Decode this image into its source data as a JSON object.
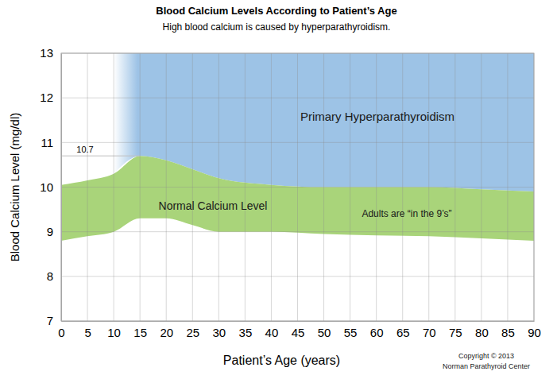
{
  "chart_data": {
    "type": "area",
    "title": "Blood Calcium Levels According to Patient’s Age",
    "subtitle": "High blood calcium is caused by hyperparathyroidism.",
    "x_label": "Patient’s Age (years)",
    "y_label": "Blood Calcium Level (mg/dl)",
    "xlim": [
      0,
      90
    ],
    "xticks": [
      0,
      5,
      10,
      15,
      20,
      25,
      30,
      35,
      40,
      45,
      50,
      55,
      60,
      65,
      70,
      75,
      80,
      85,
      90
    ],
    "ylim": [
      7,
      13
    ],
    "yticks": [
      7,
      8,
      9,
      10,
      11,
      12,
      13
    ],
    "grid": true,
    "series": [
      {
        "name": "Primary Hyperparathyroidism",
        "type": "range_area",
        "color": "#9dc3e6",
        "x": [
          10,
          15,
          20,
          25,
          30,
          40,
          50,
          60,
          70,
          80,
          90
        ],
        "low": [
          10.3,
          10.7,
          10.6,
          10.4,
          10.2,
          10.05,
          10.0,
          10.0,
          10.0,
          9.95,
          9.9
        ],
        "high": [
          13,
          13,
          13,
          13,
          13,
          13,
          13,
          13,
          13,
          13,
          13
        ]
      },
      {
        "name": "Normal Calcium Level",
        "type": "range_area",
        "color": "#a9d47a",
        "x": [
          0,
          5,
          10,
          15,
          20,
          25,
          30,
          40,
          50,
          60,
          70,
          80,
          90
        ],
        "low": [
          8.8,
          8.9,
          9.0,
          9.3,
          9.3,
          9.15,
          9.0,
          9.0,
          8.95,
          8.92,
          8.9,
          8.85,
          8.8
        ],
        "high": [
          10.05,
          10.15,
          10.3,
          10.7,
          10.6,
          10.4,
          10.2,
          10.05,
          10.0,
          10.0,
          10.0,
          9.95,
          9.9
        ]
      }
    ],
    "annotations": [
      {
        "text": "10.7",
        "x": 15,
        "y": 10.7
      },
      {
        "text": "Adults are “in the 9’s”"
      },
      {
        "text": "Copyright © 2013"
      },
      {
        "text": "Norman Parathyroid Center"
      }
    ]
  }
}
